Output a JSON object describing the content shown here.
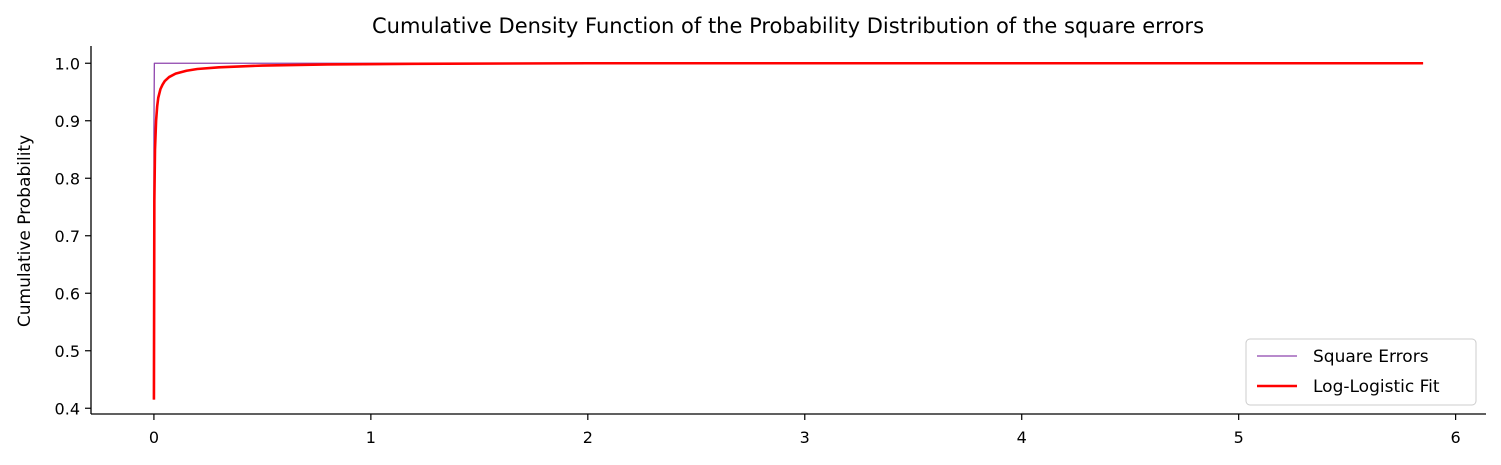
{
  "chart_data": {
    "type": "line",
    "title": "Cumulative Density Function of the Probability Distribution of the square errors",
    "xlabel": "",
    "ylabel": "Cumulative Probability",
    "xlim": [
      -0.29,
      6.14
    ],
    "ylim": [
      0.39,
      1.03
    ],
    "xticks": [
      0,
      1,
      2,
      3,
      4,
      5,
      6
    ],
    "yticks": [
      0.4,
      0.5,
      0.6,
      0.7,
      0.8,
      0.9,
      1.0
    ],
    "ytick_labels": [
      "0.4",
      "0.5",
      "0.6",
      "0.7",
      "0.8",
      "0.9",
      "1.0"
    ],
    "grid": false,
    "legend_position": "lower-right",
    "series": [
      {
        "name": "Square Errors",
        "color": "#8e44ad",
        "x": [
          0.0,
          0.0,
          0.002,
          5.85
        ],
        "y": [
          0.415,
          0.88,
          1.0,
          1.0
        ]
      },
      {
        "name": "Log-Logistic Fit",
        "color": "#ff0000",
        "x": [
          0.0,
          0.002,
          0.005,
          0.01,
          0.015,
          0.02,
          0.03,
          0.04,
          0.05,
          0.07,
          0.1,
          0.15,
          0.2,
          0.3,
          0.5,
          0.8,
          1.2,
          2.0,
          3.0,
          4.0,
          5.0,
          5.85
        ],
        "y": [
          0.415,
          0.76,
          0.85,
          0.9,
          0.925,
          0.94,
          0.955,
          0.963,
          0.969,
          0.976,
          0.982,
          0.987,
          0.99,
          0.993,
          0.996,
          0.998,
          0.999,
          1.0,
          1.0,
          1.0,
          1.0,
          1.0
        ]
      }
    ]
  }
}
